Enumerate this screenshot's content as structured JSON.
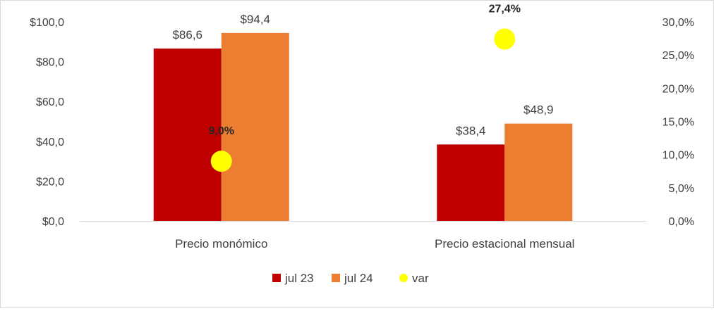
{
  "chart_data": {
    "type": "bar",
    "categories": [
      "Precio monómico",
      "Precio estacional mensual"
    ],
    "series": [
      {
        "name": "jul 23",
        "values": [
          86.6,
          38.4
        ],
        "labels": [
          "$86,6",
          "$38,4"
        ],
        "color": "#C00000",
        "axis": "left"
      },
      {
        "name": "jul 24",
        "values": [
          94.4,
          48.9
        ],
        "labels": [
          "$94,4",
          "$48,9"
        ],
        "color": "#ED7D31",
        "axis": "left"
      },
      {
        "name": "var",
        "type": "scatter",
        "values": [
          9.0,
          27.4
        ],
        "labels": [
          "9,0%",
          "27,4%"
        ],
        "color": "#FFFF00",
        "axis": "right"
      }
    ],
    "y_left": {
      "ylim": [
        0,
        100
      ],
      "ticks": [
        "$0,0",
        "$20,0",
        "$40,0",
        "$60,0",
        "$80,0",
        "$100,0"
      ]
    },
    "y_right": {
      "ylim": [
        0,
        30
      ],
      "ticks": [
        "0,0%",
        "5,0%",
        "10,0%",
        "15,0%",
        "20,0%",
        "25,0%",
        "30,0%"
      ]
    },
    "legend": {
      "placement": "bottom-center"
    },
    "grid": false
  }
}
